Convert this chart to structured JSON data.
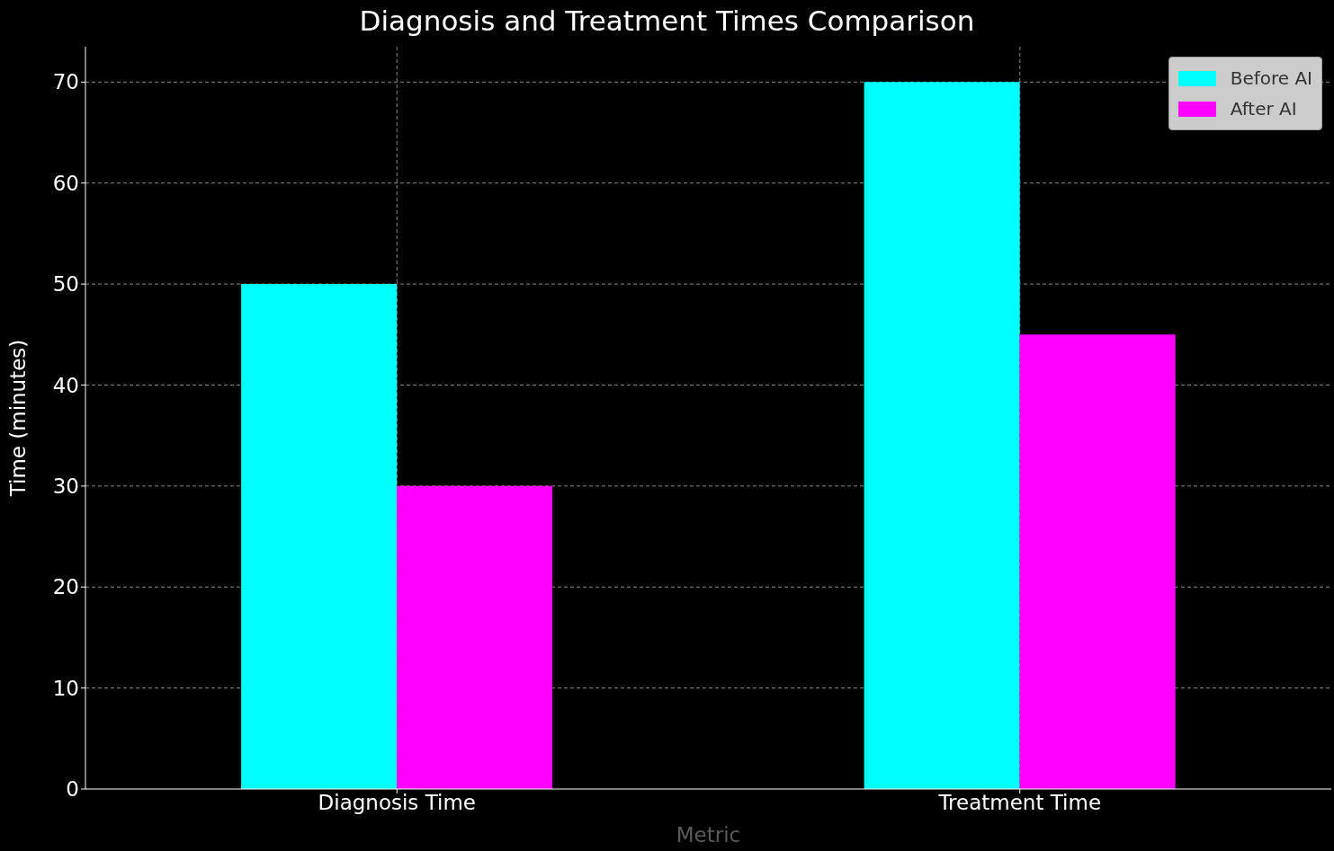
{
  "chart_data": {
    "type": "bar",
    "title": "Diagnosis and Treatment Times Comparison",
    "xlabel": "Metric",
    "ylabel": "Time (minutes)",
    "categories": [
      "Diagnosis Time",
      "Treatment Time"
    ],
    "series": [
      {
        "name": "Before AI",
        "color": "#00ffff",
        "values": [
          50,
          70
        ]
      },
      {
        "name": "After AI",
        "color": "#ff00ff",
        "values": [
          30,
          45
        ]
      }
    ],
    "ylim": [
      0,
      73.5
    ],
    "yticks": [
      0,
      10,
      20,
      30,
      40,
      50,
      60,
      70
    ],
    "grid": true,
    "legend": "top right"
  }
}
